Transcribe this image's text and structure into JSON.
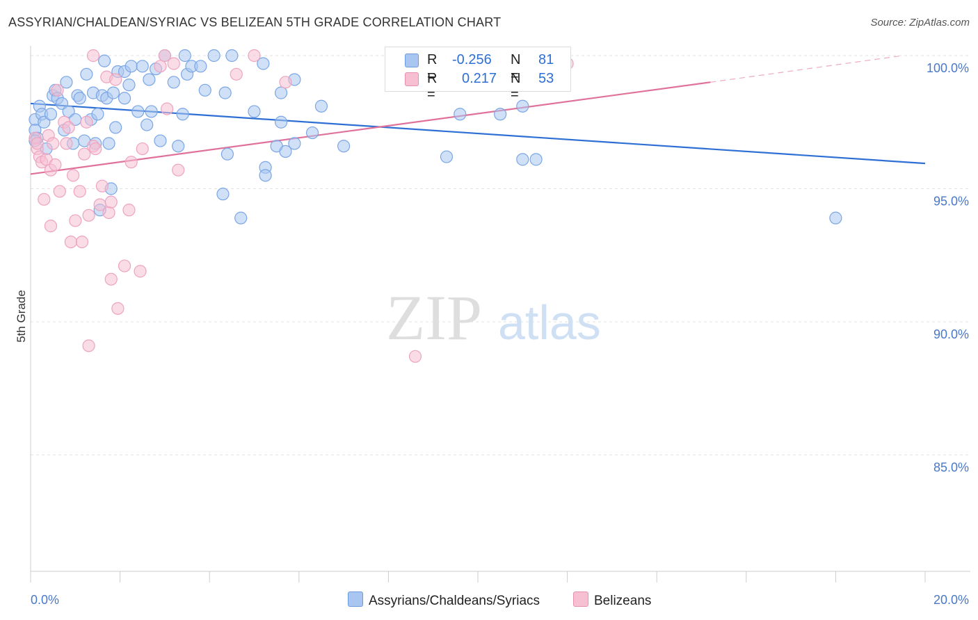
{
  "header": {
    "title": "ASSYRIAN/CHALDEAN/SYRIAC VS BELIZEAN 5TH GRADE CORRELATION CHART",
    "source": "Source: ZipAtlas.com"
  },
  "legend": {
    "row1": {
      "r_label": "R =",
      "r_value": "-0.256",
      "n_label": "N =",
      "n_value": "81"
    },
    "row2": {
      "r_label": "R =",
      "r_value": "0.217",
      "n_label": "N =",
      "n_value": "53"
    }
  },
  "bottom_legend": {
    "series1": "Assyrians/Chaldeans/Syriacs",
    "series2": "Belizeans"
  },
  "watermark": {
    "part1": "ZIP",
    "part2": "atlas"
  },
  "colors": {
    "blue": "#2d6fd4",
    "blue_fill": "#a9c6f0",
    "pink": "#e0719a",
    "pink_fill": "#f6bfd2",
    "axis_text": "#4a78c8"
  },
  "chart_data": {
    "type": "scatter",
    "title": "ASSYRIAN/CHALDEAN/SYRIAC VS BELIZEAN 5TH GRADE CORRELATION CHART",
    "xlabel": "",
    "ylabel": "5th Grade",
    "xlim": [
      0,
      20
    ],
    "ylim": [
      80.5,
      100.8
    ],
    "x_ticks": [
      "0.0%",
      "20.0%"
    ],
    "y_ticks": [
      {
        "value": 100,
        "label": "100.0%"
      },
      {
        "value": 95,
        "label": "95.0%"
      },
      {
        "value": 90,
        "label": "90.0%"
      },
      {
        "value": 85,
        "label": "85.0%"
      }
    ],
    "legend_position": "top-center",
    "series": [
      {
        "name": "Assyrians/Chaldeans/Syriacs",
        "color": "#2d6fd4",
        "r": -0.256,
        "n": 81,
        "trend": {
          "x0": 0,
          "y0": 98.2,
          "x1": 20,
          "y1": 95.95
        },
        "points": [
          [
            0.1,
            97.6
          ],
          [
            0.1,
            97.2
          ],
          [
            0.15,
            96.9
          ],
          [
            0.2,
            98.1
          ],
          [
            0.25,
            97.8
          ],
          [
            0.3,
            97.5
          ],
          [
            0.35,
            96.5
          ],
          [
            0.45,
            97.8
          ],
          [
            0.5,
            98.5
          ],
          [
            0.55,
            98.7
          ],
          [
            0.6,
            98.4
          ],
          [
            0.7,
            98.2
          ],
          [
            0.75,
            97.2
          ],
          [
            0.8,
            99.0
          ],
          [
            0.85,
            97.9
          ],
          [
            0.95,
            96.7
          ],
          [
            1.0,
            97.6
          ],
          [
            1.05,
            98.5
          ],
          [
            1.1,
            98.4
          ],
          [
            1.2,
            96.8
          ],
          [
            1.25,
            99.3
          ],
          [
            1.35,
            97.6
          ],
          [
            1.4,
            98.6
          ],
          [
            1.45,
            96.7
          ],
          [
            1.5,
            97.8
          ],
          [
            1.55,
            94.2
          ],
          [
            1.6,
            98.5
          ],
          [
            1.65,
            99.8
          ],
          [
            1.7,
            98.4
          ],
          [
            1.75,
            96.7
          ],
          [
            1.8,
            95.0
          ],
          [
            1.85,
            98.6
          ],
          [
            1.9,
            97.3
          ],
          [
            1.95,
            99.4
          ],
          [
            2.1,
            99.4
          ],
          [
            2.1,
            98.4
          ],
          [
            2.2,
            98.9
          ],
          [
            2.25,
            99.6
          ],
          [
            2.4,
            97.9
          ],
          [
            2.5,
            99.6
          ],
          [
            2.6,
            97.4
          ],
          [
            2.65,
            99.1
          ],
          [
            2.7,
            97.9
          ],
          [
            2.8,
            99.5
          ],
          [
            2.9,
            96.8
          ],
          [
            3.0,
            100.0
          ],
          [
            3.2,
            99.0
          ],
          [
            3.3,
            96.6
          ],
          [
            3.4,
            97.8
          ],
          [
            3.45,
            100.0
          ],
          [
            3.5,
            99.3
          ],
          [
            3.6,
            99.6
          ],
          [
            3.8,
            99.6
          ],
          [
            3.9,
            98.7
          ],
          [
            4.1,
            100.0
          ],
          [
            4.3,
            94.8
          ],
          [
            4.35,
            98.6
          ],
          [
            4.4,
            96.3
          ],
          [
            4.5,
            100.0
          ],
          [
            4.7,
            93.9
          ],
          [
            5.0,
            97.9
          ],
          [
            5.2,
            99.7
          ],
          [
            5.25,
            95.8
          ],
          [
            5.25,
            95.5
          ],
          [
            5.5,
            96.6
          ],
          [
            5.6,
            98.6
          ],
          [
            5.6,
            97.5
          ],
          [
            5.7,
            96.4
          ],
          [
            5.9,
            99.1
          ],
          [
            5.9,
            96.7
          ],
          [
            6.3,
            97.1
          ],
          [
            6.5,
            98.1
          ],
          [
            7.0,
            96.6
          ],
          [
            9.3,
            96.2
          ],
          [
            9.6,
            97.8
          ],
          [
            10.5,
            97.8
          ],
          [
            11.0,
            98.1
          ],
          [
            11.0,
            96.1
          ],
          [
            11.3,
            96.1
          ],
          [
            18.0,
            93.9
          ],
          [
            0.1,
            96.8
          ]
        ]
      },
      {
        "name": "Belizeans",
        "color": "#e0719a",
        "r": 0.217,
        "n": 53,
        "trend": {
          "x0": 0,
          "y0": 95.55,
          "x1": 15.2,
          "y1": 99.0,
          "dash_x1": 19.5,
          "dash_y1": 100.0
        },
        "points": [
          [
            0.1,
            96.9
          ],
          [
            0.15,
            96.5
          ],
          [
            0.2,
            96.2
          ],
          [
            0.25,
            96.0
          ],
          [
            0.3,
            94.6
          ],
          [
            0.35,
            96.1
          ],
          [
            0.4,
            97.0
          ],
          [
            0.45,
            95.7
          ],
          [
            0.45,
            93.6
          ],
          [
            0.5,
            96.7
          ],
          [
            0.55,
            95.9
          ],
          [
            0.6,
            98.7
          ],
          [
            0.65,
            94.9
          ],
          [
            0.75,
            97.5
          ],
          [
            0.8,
            96.7
          ],
          [
            0.85,
            97.3
          ],
          [
            0.9,
            93.0
          ],
          [
            0.95,
            95.5
          ],
          [
            1.0,
            93.8
          ],
          [
            1.1,
            94.9
          ],
          [
            1.15,
            93.0
          ],
          [
            1.2,
            96.3
          ],
          [
            1.25,
            97.5
          ],
          [
            1.3,
            94.0
          ],
          [
            1.3,
            89.1
          ],
          [
            1.4,
            96.6
          ],
          [
            1.45,
            96.5
          ],
          [
            1.4,
            100.0
          ],
          [
            1.55,
            94.4
          ],
          [
            1.6,
            95.1
          ],
          [
            1.7,
            99.2
          ],
          [
            1.75,
            94.1
          ],
          [
            1.8,
            94.5
          ],
          [
            1.8,
            91.6
          ],
          [
            1.9,
            99.1
          ],
          [
            1.95,
            90.5
          ],
          [
            2.1,
            92.1
          ],
          [
            2.2,
            94.2
          ],
          [
            2.25,
            96.0
          ],
          [
            2.45,
            91.9
          ],
          [
            2.5,
            96.5
          ],
          [
            2.9,
            99.6
          ],
          [
            3.0,
            100.0
          ],
          [
            3.05,
            98.0
          ],
          [
            3.2,
            99.7
          ],
          [
            3.3,
            95.7
          ],
          [
            4.6,
            99.3
          ],
          [
            5.0,
            100.0
          ],
          [
            5.7,
            99.0
          ],
          [
            8.6,
            88.7
          ],
          [
            8.7,
            100.0
          ],
          [
            12.0,
            99.7
          ],
          [
            0.15,
            96.7
          ]
        ]
      }
    ]
  }
}
